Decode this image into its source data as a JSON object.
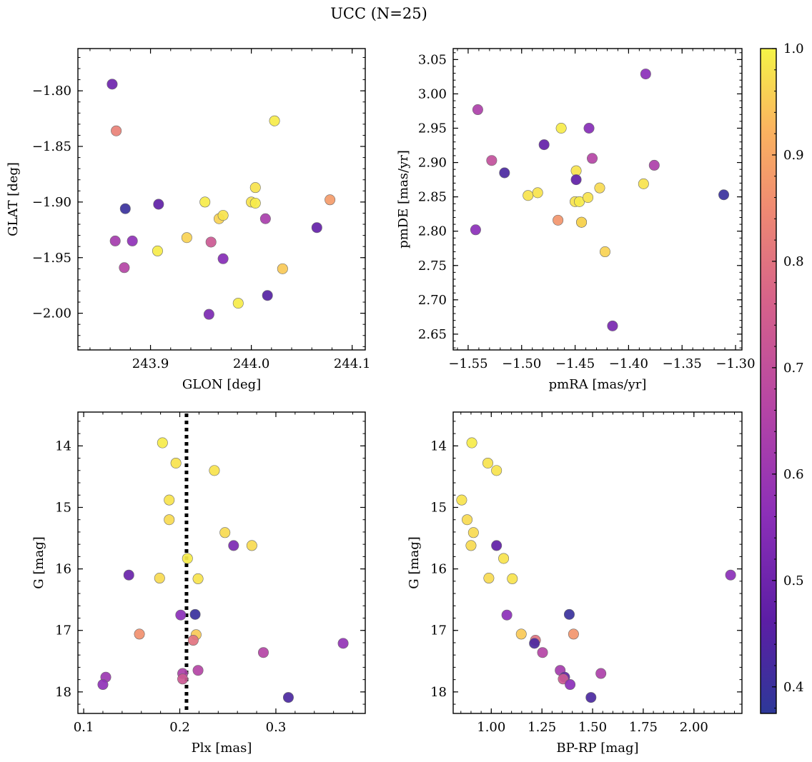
{
  "figure": {
    "title": "UCC (N=25)",
    "colorbar": {
      "colormap": "plasma",
      "range": [
        0.375,
        1.0
      ],
      "ticks": [
        "0.4",
        "0.5",
        "0.6",
        "0.7",
        "0.8",
        "0.9",
        "1.0"
      ],
      "tick_values": [
        0.4,
        0.5,
        0.6,
        0.7,
        0.8,
        0.9,
        1.0
      ]
    }
  },
  "chart_data": [
    {
      "type": "scatter",
      "id": "glon-glat",
      "title": "",
      "xlabel": "GLON [deg]",
      "ylabel": "GLAT [deg]",
      "xlim": [
        243.828,
        244.113
      ],
      "ylim": [
        -2.033,
        -1.762
      ],
      "x_invert": false,
      "y_invert": false,
      "xticks": [
        243.9,
        244.0,
        244.1
      ],
      "xtick_labels": [
        "243.9",
        "244.0",
        "244.1"
      ],
      "yticks": [
        -2.0,
        -1.95,
        -1.9,
        -1.85,
        -1.8
      ],
      "ytick_labels": [
        "−2.00",
        "−1.95",
        "−1.90",
        "−1.85",
        "−1.80"
      ],
      "x_minor_step": 0.02,
      "y_minor_step": 0.01,
      "points": [
        {
          "x": 243.862,
          "y": -1.794,
          "c": 0.5
        },
        {
          "x": 243.866,
          "y": -1.836,
          "c": 0.83
        },
        {
          "x": 243.875,
          "y": -1.906,
          "c": 0.4
        },
        {
          "x": 243.908,
          "y": -1.902,
          "c": 0.47
        },
        {
          "x": 243.865,
          "y": -1.935,
          "c": 0.62
        },
        {
          "x": 243.882,
          "y": -1.935,
          "c": 0.57
        },
        {
          "x": 243.874,
          "y": -1.959,
          "c": 0.66
        },
        {
          "x": 243.907,
          "y": -1.944,
          "c": 0.99
        },
        {
          "x": 243.936,
          "y": -1.932,
          "c": 0.96
        },
        {
          "x": 243.954,
          "y": -1.9,
          "c": 0.99
        },
        {
          "x": 243.96,
          "y": -1.936,
          "c": 0.73
        },
        {
          "x": 243.968,
          "y": -1.915,
          "c": 0.96
        },
        {
          "x": 243.972,
          "y": -1.912,
          "c": 0.98
        },
        {
          "x": 243.972,
          "y": -1.951,
          "c": 0.55
        },
        {
          "x": 243.958,
          "y": -2.001,
          "c": 0.53
        },
        {
          "x": 243.987,
          "y": -1.991,
          "c": 0.99
        },
        {
          "x": 244.0,
          "y": -1.9,
          "c": 0.98
        },
        {
          "x": 244.004,
          "y": -1.901,
          "c": 0.99
        },
        {
          "x": 244.004,
          "y": -1.887,
          "c": 0.98
        },
        {
          "x": 244.014,
          "y": -1.915,
          "c": 0.63
        },
        {
          "x": 244.016,
          "y": -1.984,
          "c": 0.45
        },
        {
          "x": 244.023,
          "y": -1.827,
          "c": 0.99
        },
        {
          "x": 244.031,
          "y": -1.96,
          "c": 0.95
        },
        {
          "x": 244.065,
          "y": -1.923,
          "c": 0.48
        },
        {
          "x": 244.078,
          "y": -1.898,
          "c": 0.88
        }
      ]
    },
    {
      "type": "scatter",
      "id": "pmra-pmde",
      "title": "",
      "xlabel": "pmRA [mas/yr]",
      "ylabel": "pmDE [mas/yr]",
      "xlim": [
        -1.564,
        -1.294
      ],
      "ylim": [
        2.627,
        3.066
      ],
      "x_invert": false,
      "y_invert": false,
      "xticks": [
        -1.55,
        -1.5,
        -1.45,
        -1.4,
        -1.35,
        -1.3
      ],
      "xtick_labels": [
        "−1.55",
        "−1.50",
        "−1.45",
        "−1.40",
        "−1.35",
        "−1.30"
      ],
      "yticks": [
        2.65,
        2.7,
        2.75,
        2.8,
        2.85,
        2.9,
        2.95,
        3.0,
        3.05
      ],
      "ytick_labels": [
        "2.65",
        "2.70",
        "2.75",
        "2.80",
        "2.85",
        "2.90",
        "2.95",
        "3.00",
        "3.05"
      ],
      "x_minor_step": 0.01,
      "y_minor_step": 0.01,
      "points": [
        {
          "x": -1.541,
          "y": 2.977,
          "c": 0.64
        },
        {
          "x": -1.528,
          "y": 2.903,
          "c": 0.7
        },
        {
          "x": -1.516,
          "y": 2.885,
          "c": 0.43
        },
        {
          "x": -1.543,
          "y": 2.802,
          "c": 0.56
        },
        {
          "x": -1.494,
          "y": 2.852,
          "c": 0.98
        },
        {
          "x": -1.485,
          "y": 2.856,
          "c": 0.98
        },
        {
          "x": -1.479,
          "y": 2.926,
          "c": 0.48
        },
        {
          "x": -1.466,
          "y": 2.816,
          "c": 0.87
        },
        {
          "x": -1.463,
          "y": 2.95,
          "c": 0.99
        },
        {
          "x": -1.45,
          "y": 2.843,
          "c": 0.98
        },
        {
          "x": -1.449,
          "y": 2.888,
          "c": 0.98
        },
        {
          "x": -1.449,
          "y": 2.875,
          "c": 0.47
        },
        {
          "x": -1.446,
          "y": 2.843,
          "c": 0.99
        },
        {
          "x": -1.444,
          "y": 2.813,
          "c": 0.82
        },
        {
          "x": -1.444,
          "y": 2.813,
          "c": 0.97
        },
        {
          "x": -1.438,
          "y": 2.849,
          "c": 0.98
        },
        {
          "x": -1.437,
          "y": 2.95,
          "c": 0.55
        },
        {
          "x": -1.434,
          "y": 2.906,
          "c": 0.66
        },
        {
          "x": -1.427,
          "y": 2.863,
          "c": 0.97
        },
        {
          "x": -1.422,
          "y": 2.77,
          "c": 0.96
        },
        {
          "x": -1.415,
          "y": 2.662,
          "c": 0.52
        },
        {
          "x": -1.386,
          "y": 2.869,
          "c": 0.98
        },
        {
          "x": -1.384,
          "y": 3.029,
          "c": 0.56
        },
        {
          "x": -1.376,
          "y": 2.896,
          "c": 0.64
        },
        {
          "x": -1.311,
          "y": 2.853,
          "c": 0.4
        }
      ]
    },
    {
      "type": "scatter",
      "id": "plx-g",
      "title": "",
      "xlabel": "Plx [mas]",
      "ylabel": "G [mag]",
      "xlim": [
        0.094,
        0.393
      ],
      "ylim": [
        13.45,
        18.35
      ],
      "x_invert": false,
      "y_invert": true,
      "xticks": [
        0.1,
        0.2,
        0.3
      ],
      "xtick_labels": [
        "0.1",
        "0.2",
        "0.3"
      ],
      "yticks": [
        14,
        15,
        16,
        17,
        18
      ],
      "ytick_labels": [
        "14",
        "15",
        "16",
        "17",
        "18"
      ],
      "x_minor_step": 0.02,
      "y_minor_step": 0.2,
      "vline": {
        "x": 0.207,
        "style": "dotted"
      },
      "points": [
        {
          "x": 0.182,
          "y": 13.95,
          "c": 0.99
        },
        {
          "x": 0.196,
          "y": 14.28,
          "c": 0.98
        },
        {
          "x": 0.236,
          "y": 14.4,
          "c": 0.98
        },
        {
          "x": 0.189,
          "y": 14.88,
          "c": 0.98
        },
        {
          "x": 0.189,
          "y": 15.2,
          "c": 0.97
        },
        {
          "x": 0.247,
          "y": 15.41,
          "c": 0.97
        },
        {
          "x": 0.256,
          "y": 15.62,
          "c": 0.53
        },
        {
          "x": 0.275,
          "y": 15.62,
          "c": 0.97
        },
        {
          "x": 0.208,
          "y": 15.83,
          "c": 0.99
        },
        {
          "x": 0.147,
          "y": 16.1,
          "c": 0.49
        },
        {
          "x": 0.179,
          "y": 16.15,
          "c": 0.97
        },
        {
          "x": 0.219,
          "y": 16.16,
          "c": 0.98
        },
        {
          "x": 0.201,
          "y": 16.75,
          "c": 0.56
        },
        {
          "x": 0.216,
          "y": 16.74,
          "c": 0.4
        },
        {
          "x": 0.158,
          "y": 17.06,
          "c": 0.86
        },
        {
          "x": 0.217,
          "y": 17.07,
          "c": 0.95
        },
        {
          "x": 0.214,
          "y": 17.16,
          "c": 0.8
        },
        {
          "x": 0.37,
          "y": 17.21,
          "c": 0.58
        },
        {
          "x": 0.287,
          "y": 17.36,
          "c": 0.66
        },
        {
          "x": 0.219,
          "y": 17.65,
          "c": 0.66
        },
        {
          "x": 0.203,
          "y": 17.7,
          "c": 0.64
        },
        {
          "x": 0.123,
          "y": 17.76,
          "c": 0.6
        },
        {
          "x": 0.203,
          "y": 17.79,
          "c": 0.73
        },
        {
          "x": 0.12,
          "y": 17.88,
          "c": 0.57
        },
        {
          "x": 0.313,
          "y": 18.09,
          "c": 0.43
        }
      ]
    },
    {
      "type": "scatter",
      "id": "bprp-g",
      "title": "",
      "xlabel": "BP-RP [mag]",
      "ylabel": "G [mag]",
      "xlim": [
        0.812,
        2.237
      ],
      "ylim": [
        13.45,
        18.35
      ],
      "x_invert": false,
      "y_invert": true,
      "xticks": [
        1.0,
        1.25,
        1.5,
        1.75,
        2.0
      ],
      "xtick_labels": [
        "1.00",
        "1.25",
        "1.50",
        "1.75",
        "2.00"
      ],
      "yticks": [
        14,
        15,
        16,
        17,
        18
      ],
      "ytick_labels": [
        "14",
        "15",
        "16",
        "17",
        "18"
      ],
      "x_minor_step": 0.05,
      "y_minor_step": 0.2,
      "points": [
        {
          "x": 0.904,
          "y": 13.95,
          "c": 0.99
        },
        {
          "x": 0.983,
          "y": 14.28,
          "c": 0.98
        },
        {
          "x": 1.026,
          "y": 14.4,
          "c": 0.98
        },
        {
          "x": 0.854,
          "y": 14.88,
          "c": 0.98
        },
        {
          "x": 0.881,
          "y": 15.2,
          "c": 0.97
        },
        {
          "x": 0.912,
          "y": 15.41,
          "c": 0.97
        },
        {
          "x": 0.9,
          "y": 15.62,
          "c": 0.97
        },
        {
          "x": 1.026,
          "y": 15.62,
          "c": 0.47
        },
        {
          "x": 1.061,
          "y": 15.83,
          "c": 0.98
        },
        {
          "x": 0.988,
          "y": 16.15,
          "c": 0.97
        },
        {
          "x": 1.104,
          "y": 16.16,
          "c": 0.98
        },
        {
          "x": 2.181,
          "y": 16.1,
          "c": 0.56
        },
        {
          "x": 1.077,
          "y": 16.75,
          "c": 0.56
        },
        {
          "x": 1.385,
          "y": 16.74,
          "c": 0.4
        },
        {
          "x": 1.148,
          "y": 17.06,
          "c": 0.95
        },
        {
          "x": 1.406,
          "y": 17.06,
          "c": 0.87
        },
        {
          "x": 1.218,
          "y": 17.16,
          "c": 0.8
        },
        {
          "x": 1.213,
          "y": 17.21,
          "c": 0.43
        },
        {
          "x": 1.253,
          "y": 17.36,
          "c": 0.66
        },
        {
          "x": 1.34,
          "y": 17.65,
          "c": 0.62
        },
        {
          "x": 1.541,
          "y": 17.7,
          "c": 0.64
        },
        {
          "x": 1.362,
          "y": 17.76,
          "c": 0.47
        },
        {
          "x": 1.355,
          "y": 17.79,
          "c": 0.73
        },
        {
          "x": 1.389,
          "y": 17.88,
          "c": 0.56
        },
        {
          "x": 1.492,
          "y": 18.09,
          "c": 0.43
        }
      ]
    }
  ]
}
